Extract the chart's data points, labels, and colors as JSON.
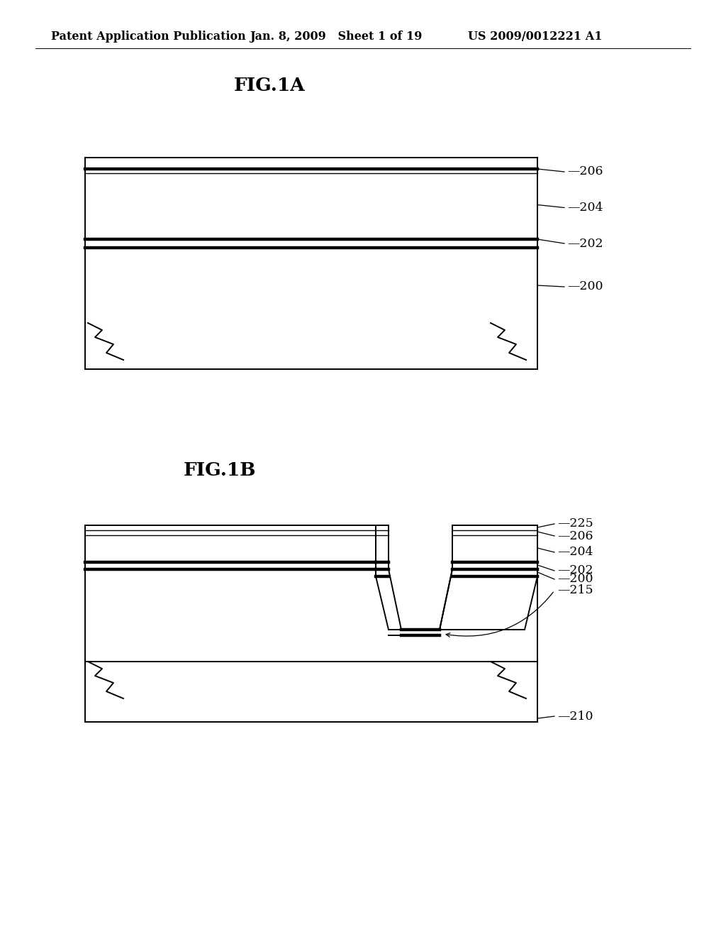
{
  "bg_color": "#ffffff",
  "lc": "#000000",
  "header_left": "Patent Application Publication",
  "header_mid": "Jan. 8, 2009   Sheet 1 of 19",
  "header_right": "US 2009/0012221 A1",
  "fig1a_title": "FIG.1A",
  "fig1b_title": "FIG.1B",
  "label_fontsize": 12.5,
  "header_fontsize": 11.5,
  "title_fontsize": 19,
  "lw": 1.4,
  "tlw": 3.2,
  "slw": 1.0,
  "llw": 0.9
}
